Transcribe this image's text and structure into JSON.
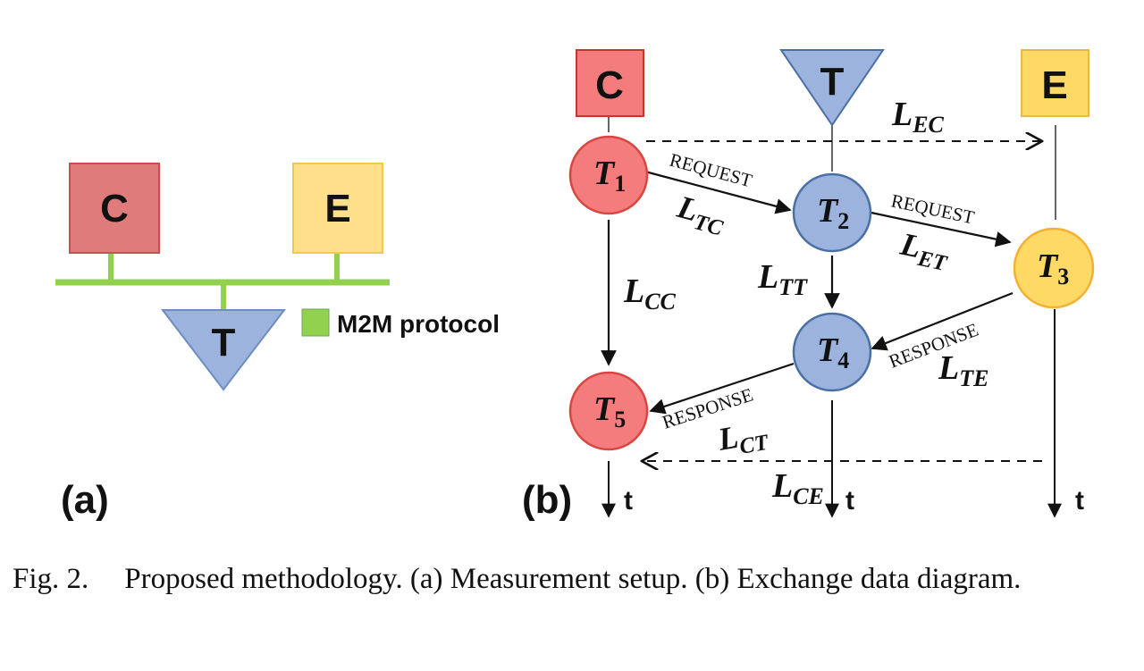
{
  "panel_a": {
    "label": "(a)",
    "nodes": {
      "c": "C",
      "e": "E",
      "t": "T"
    },
    "legend": "M2M protocol",
    "colors": {
      "c": "#e07b7b",
      "e": "#ffe08a",
      "t": "#9bb3dd",
      "bus": "#92d050"
    }
  },
  "panel_b": {
    "label": "(b)",
    "headers": {
      "c": "C",
      "t": "T",
      "e": "E"
    },
    "events": {
      "t1": {
        "base": "T",
        "sub": "1"
      },
      "t2": {
        "base": "T",
        "sub": "2"
      },
      "t3": {
        "base": "T",
        "sub": "3"
      },
      "t4": {
        "base": "T",
        "sub": "4"
      },
      "t5": {
        "base": "T",
        "sub": "5"
      }
    },
    "messages": {
      "request1": "REQUEST",
      "request2": "REQUEST",
      "response1": "RESPONSE",
      "response2": "RESPONSE"
    },
    "latencies": {
      "ec": {
        "base": "L",
        "sub": "EC"
      },
      "tc": {
        "base": "L",
        "sub": "TC"
      },
      "et": {
        "base": "L",
        "sub": "ET"
      },
      "cc": {
        "base": "L",
        "sub": "CC"
      },
      "tt": {
        "base": "L",
        "sub": "TT"
      },
      "te": {
        "base": "L",
        "sub": "TE"
      },
      "ct": {
        "base": "L",
        "sub": "CT"
      },
      "ce": {
        "base": "L",
        "sub": "CE"
      }
    },
    "time_axis": {
      "c": "t",
      "t": "t",
      "e": "t"
    },
    "colors": {
      "red": "#f47c7c",
      "blue": "#9bb3dd",
      "yellow": "#ffd966"
    }
  },
  "caption": {
    "number": "Fig. 2.",
    "text": "Proposed methodology. (a) Measurement setup. (b) Exchange data diagram."
  }
}
